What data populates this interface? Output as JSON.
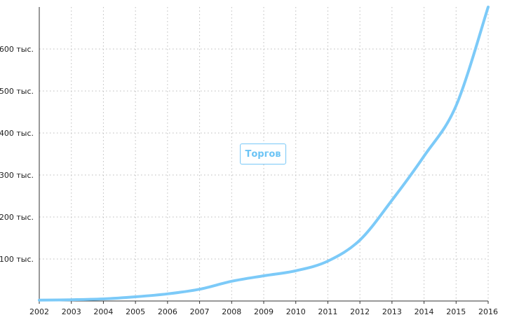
{
  "chart_data": {
    "type": "line",
    "title": "",
    "xlabel": "",
    "ylabel": "",
    "x": [
      2002,
      2003,
      2004,
      2005,
      2006,
      2007,
      2008,
      2009,
      2010,
      2011,
      2012,
      2013,
      2014,
      2015,
      2016
    ],
    "x_tick_labels": [
      "2002",
      "2003",
      "2004",
      "2005",
      "2006",
      "2007",
      "2008",
      "2009",
      "2010",
      "2011",
      "2012",
      "2013",
      "2014",
      "2015",
      "2016"
    ],
    "y_ticks": [
      100000,
      200000,
      300000,
      400000,
      500000,
      600000
    ],
    "y_tick_labels": [
      "100 тыс.",
      "200 тыс.",
      "300 тыс.",
      "400 тыс.",
      "500 тыс.",
      "600 тыс."
    ],
    "ylim": [
      0,
      700000
    ],
    "grid": true,
    "legend_position": "center",
    "series": [
      {
        "name": "Торгов",
        "color": "#7ccaf8",
        "values": [
          2000,
          3000,
          5000,
          10000,
          17000,
          28000,
          47000,
          60000,
          72000,
          95000,
          145000,
          240000,
          345000,
          465000,
          700000
        ]
      }
    ]
  },
  "legend": {
    "label": "Торгов"
  },
  "colors": {
    "line": "#7ccaf8",
    "grid": "#bdbdbd",
    "axis": "#333333"
  }
}
